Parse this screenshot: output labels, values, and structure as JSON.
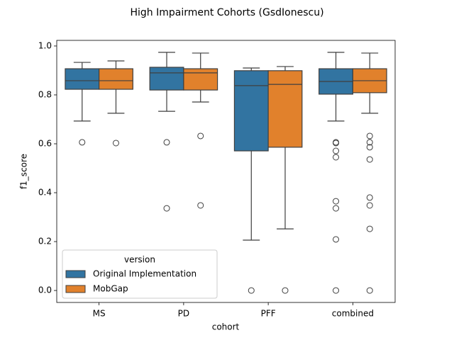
{
  "chart_data": {
    "type": "box",
    "title": "High Impairment Cohorts (GsdIonescu)",
    "x_label": "cohort",
    "y_label": "f1_score",
    "categories": [
      "MS",
      "PD",
      "PFF",
      "combined"
    ],
    "ylim": [
      -0.049,
      1.023
    ],
    "yticks": [
      {
        "value": 0,
        "label": "0.0"
      },
      0.2,
      0.4,
      0.6,
      0.8,
      {
        "value": 1,
        "label": "1.0"
      }
    ],
    "legend_title": "version",
    "legend_position": "lower left",
    "series": [
      {
        "name": "Original Implementation",
        "color": "#3274a1",
        "whislo": [
          0.693,
          0.733,
          0.206,
          0.693
        ],
        "q1": [
          0.823,
          0.82,
          0.571,
          0.803
        ],
        "median": [
          0.858,
          0.89,
          0.838,
          0.855
        ],
        "q3": [
          0.907,
          0.913,
          0.899,
          0.907
        ],
        "whishi": [
          0.933,
          0.974,
          0.91,
          0.974
        ],
        "fliers": [
          [
            0.606
          ],
          [
            0.606,
            0.336
          ],
          [
            0
          ],
          [
            0.606,
            0.603,
            0.571,
            0.545,
            0.365,
            0.336,
            0.209,
            0
          ]
        ]
      },
      {
        "name": "MobGap",
        "color": "#e1812c",
        "whislo": [
          0.725,
          0.771,
          0.252,
          0.725
        ],
        "q1": [
          0.823,
          0.82,
          0.586,
          0.809
        ],
        "median": [
          0.858,
          0.89,
          0.843,
          0.858
        ],
        "q3": [
          0.907,
          0.907,
          0.899,
          0.907
        ],
        "whishi": [
          0.939,
          0.971,
          0.916,
          0.971
        ],
        "fliers": [
          [
            0.603
          ],
          [
            0.632,
            0.348
          ],
          [
            0
          ],
          [
            0.632,
            0.606,
            0.586,
            0.536,
            0.38,
            0.348,
            0.252,
            0
          ]
        ]
      }
    ]
  }
}
